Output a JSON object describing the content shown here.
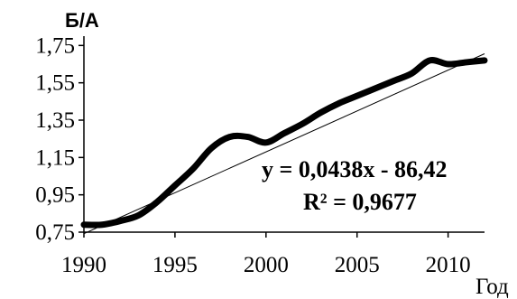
{
  "chart_data": {
    "type": "line",
    "title": "",
    "ylabel": "Б/А",
    "xlabel": "Год",
    "xlim": [
      1990,
      2012
    ],
    "ylim": [
      0.75,
      1.8
    ],
    "x_ticks": [
      1990,
      1995,
      2000,
      2005,
      2010
    ],
    "x_tick_labels": [
      "1990",
      "1995",
      "2000",
      "2005",
      "2010"
    ],
    "y_ticks": [
      0.75,
      0.95,
      1.15,
      1.35,
      1.55,
      1.75
    ],
    "y_tick_labels": [
      "0,75",
      "0,95",
      "1,15",
      "1,35",
      "1,55",
      "1,75"
    ],
    "grid": false,
    "series": [
      {
        "style": "thick-smooth",
        "color": "#000000",
        "x": [
          1990,
          1991,
          1992,
          1993,
          1994,
          1995,
          1996,
          1997,
          1998,
          1999,
          2000,
          2001,
          2002,
          2003,
          2004,
          2005,
          2006,
          2007,
          2008,
          2009,
          2010,
          2011,
          2012
        ],
        "y": [
          0.79,
          0.79,
          0.81,
          0.84,
          0.91,
          1.0,
          1.09,
          1.2,
          1.26,
          1.26,
          1.23,
          1.28,
          1.33,
          1.39,
          1.44,
          1.48,
          1.52,
          1.56,
          1.6,
          1.67,
          1.65,
          1.66,
          1.67
        ]
      }
    ],
    "trendline": {
      "type": "linear",
      "color": "#000000",
      "slope": 0.0438,
      "intercept": -86.42,
      "x_range": [
        1990,
        2012
      ]
    },
    "annotations": [
      {
        "text": "y = 0,0438x - 86,42"
      },
      {
        "text": "R² = 0,9677"
      }
    ]
  }
}
